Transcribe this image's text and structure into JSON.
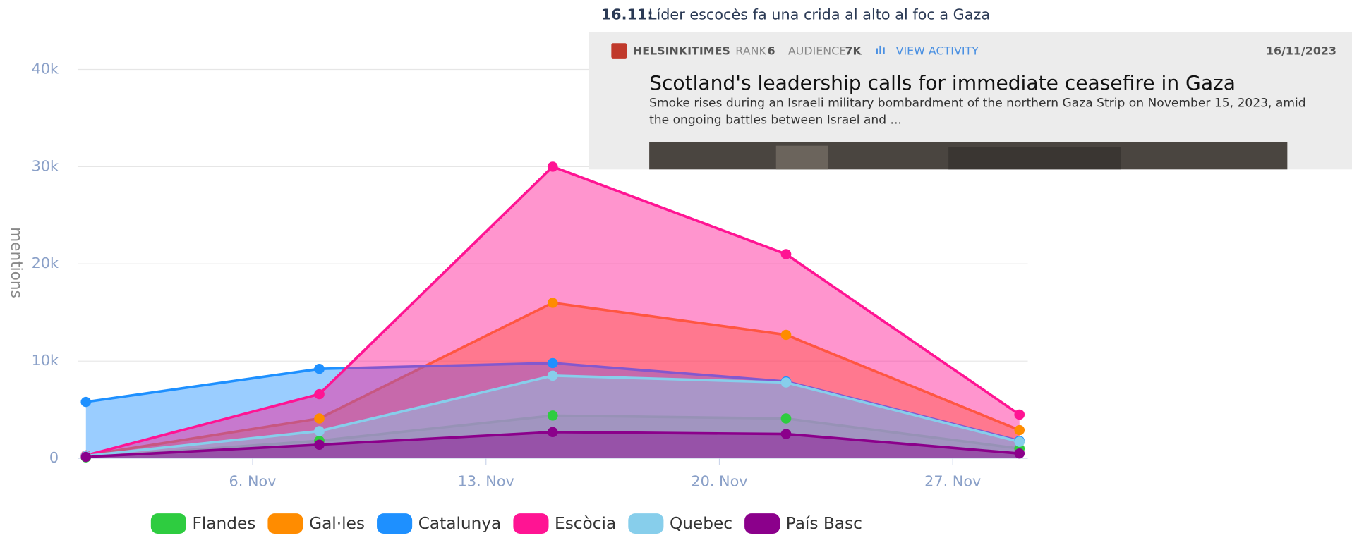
{
  "chart_data": {
    "type": "area",
    "y_label": "mentions",
    "x": [
      1,
      8,
      15,
      22,
      29
    ],
    "xlim": [
      0.75,
      29.25
    ],
    "xticks": [
      {
        "value": 6,
        "label": "6. Nov"
      },
      {
        "value": 13,
        "label": "13. Nov"
      },
      {
        "value": 20,
        "label": "20. Nov"
      },
      {
        "value": 27,
        "label": "27. Nov"
      }
    ],
    "ylim": [
      0,
      40000
    ],
    "yticks": [
      {
        "value": 0,
        "label": "0"
      },
      {
        "value": 10000,
        "label": "10k"
      },
      {
        "value": 20000,
        "label": "20k"
      },
      {
        "value": 30000,
        "label": "30k"
      },
      {
        "value": 40000,
        "label": "40k"
      }
    ],
    "grid": true,
    "legend": "bottom",
    "series": [
      {
        "name": "Flandes",
        "color": "#2ecc40",
        "values": [
          100,
          1800,
          4400,
          4100,
          1000
        ]
      },
      {
        "name": "Gal·les",
        "color": "#ff8c00",
        "values": [
          300,
          4100,
          16000,
          12700,
          2900
        ]
      },
      {
        "name": "Catalunya",
        "color": "#1e90ff",
        "values": [
          5800,
          9200,
          9800,
          7900,
          1800
        ]
      },
      {
        "name": "Escòcia",
        "color": "#ff1493",
        "values": [
          300,
          6600,
          30000,
          21000,
          4500
        ]
      },
      {
        "name": "Quebec",
        "color": "#87ceeb",
        "values": [
          250,
          2800,
          8500,
          7800,
          1700
        ]
      },
      {
        "name": "País Basc",
        "color": "#8b008b",
        "values": [
          150,
          1400,
          2700,
          2500,
          500
        ]
      }
    ]
  },
  "news_card": {
    "heading_date": "16.11:",
    "heading_text": "Líder escocès fa una crida al alto al foc a Gaza",
    "source": "HELSINKITIMES",
    "rank_label": "RANK",
    "rank": "6",
    "audience_label": "AUDIENCE",
    "audience": "7K",
    "activity_link": "VIEW ACTIVITY",
    "date": "16/11/2023",
    "title": "Scotland's leadership calls for immediate ceasefire in Gaza",
    "description_line1": "Smoke rises during an Israeli military bombardment of the northern Gaza Strip on November 15, 2023, amid",
    "description_line2": "the ongoing battles between Israel and ..."
  }
}
